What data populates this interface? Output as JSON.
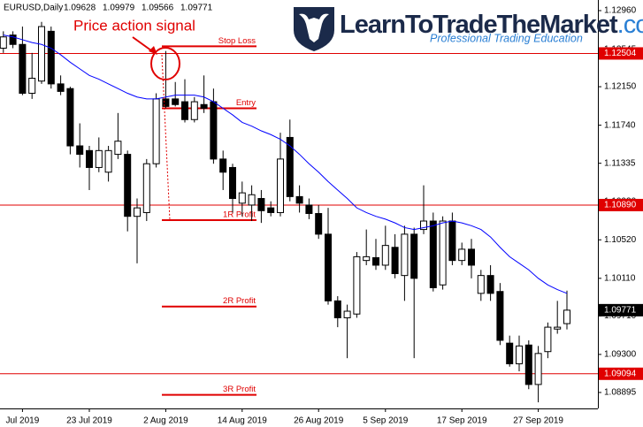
{
  "chart_data": {
    "type": "candlestick",
    "header": {
      "symbol": "EURUSD,Daily",
      "ohlc": [
        1.09628,
        1.09979,
        1.09566,
        1.09771
      ]
    },
    "logo": {
      "name": "LearnToTradeTheMarket",
      "suffix": ".com",
      "tagline": "Professional Trading Education"
    },
    "signal_label": "Price action signal",
    "categories": [
      null,
      null,
      "Jul 2019",
      null,
      null,
      null,
      null,
      null,
      null,
      "23 Jul 2019",
      null,
      null,
      null,
      null,
      null,
      null,
      null,
      "2 Aug 2019",
      null,
      null,
      null,
      null,
      null,
      null,
      null,
      "14 Aug 2019",
      null,
      null,
      null,
      null,
      null,
      null,
      null,
      "26 Aug 2019",
      null,
      null,
      null,
      null,
      null,
      null,
      "5 Sep 2019",
      null,
      null,
      null,
      null,
      null,
      null,
      null,
      "17 Sep 2019",
      null,
      null,
      null,
      null,
      null,
      null,
      null,
      "27 Sep 2019",
      null,
      null,
      null
    ],
    "candles": {
      "open": [
        1.1256,
        1.127,
        1.126,
        1.1208,
        1.1221,
        1.1274,
        1.1218,
        1.1213,
        1.1152,
        1.1147,
        1.1129,
        1.1124,
        1.1143,
        1.1143,
        1.1077,
        1.1081,
        1.1133,
        1.1202,
        1.1202,
        1.1199,
        1.118,
        1.1196,
        1.1199,
        1.1138,
        1.1129,
        1.1091,
        1.1089,
        1.1096,
        1.1086,
        1.1081,
        1.1161,
        1.1098,
        1.1089,
        1.108,
        1.1058,
        1.0987,
        1.0969,
        1.0973,
        1.103,
        1.1033,
        1.1025,
        1.1044,
        1.1014,
        1.1058,
        1.1063,
        1.1072,
        1.1004,
        1.1072,
        1.103,
        1.1042,
        1.0995,
        1.1014,
        1.0997,
        1.0942,
        1.092,
        1.094,
        1.0898,
        1.0933,
        1.0957,
        1.09628
      ],
      "high": [
        1.1274,
        1.1274,
        1.1279,
        1.1251,
        1.1284,
        1.1279,
        1.1227,
        1.1215,
        1.1176,
        1.1152,
        1.1161,
        1.1152,
        1.1187,
        1.1147,
        1.1096,
        1.1138,
        1.1208,
        1.1253,
        1.122,
        1.1223,
        1.1204,
        1.1227,
        1.1213,
        1.1147,
        1.1133,
        1.1114,
        1.111,
        1.1105,
        1.1093,
        1.1166,
        1.118,
        1.111,
        1.1096,
        1.1089,
        1.1086,
        1.0992,
        1.0983,
        1.1039,
        1.1063,
        1.1053,
        1.1067,
        1.1058,
        1.1067,
        1.1065,
        1.111,
        1.1081,
        1.1077,
        1.1081,
        1.1049,
        1.1053,
        1.102,
        1.1025,
        1.1006,
        1.095,
        1.095,
        1.0945,
        1.0939,
        1.0964,
        1.0987,
        1.09979
      ],
      "low": [
        1.1251,
        1.1256,
        1.1206,
        1.1202,
        1.1218,
        1.1213,
        1.1206,
        1.1143,
        1.1129,
        1.1105,
        1.1124,
        1.1114,
        1.1138,
        1.1061,
        1.1027,
        1.1072,
        1.1129,
        1.1192,
        1.1194,
        1.1177,
        1.1177,
        1.1187,
        1.1133,
        1.1105,
        1.1081,
        1.1077,
        1.1072,
        1.107,
        1.1077,
        1.1077,
        1.1093,
        1.1081,
        1.1074,
        1.1053,
        1.0983,
        1.0959,
        1.0926,
        1.0969,
        1.1025,
        1.102,
        1.102,
        1.1011,
        1.0987,
        1.0926,
        1.1058,
        1.0997,
        1.0999,
        1.1025,
        1.1025,
        1.1011,
        1.0987,
        1.0987,
        1.094,
        1.0917,
        1.0912,
        1.0893,
        1.0879,
        1.0926,
        1.0952,
        1.09566
      ],
      "close": [
        1.1268,
        1.126,
        1.1208,
        1.1224,
        1.1279,
        1.1218,
        1.121,
        1.1152,
        1.1143,
        1.1129,
        1.1147,
        1.1147,
        1.1157,
        1.1077,
        1.1086,
        1.1133,
        1.1202,
        1.1194,
        1.1196,
        1.118,
        1.1199,
        1.1192,
        1.1138,
        1.1124,
        1.1096,
        1.1102,
        1.11,
        1.1083,
        1.1081,
        1.1138,
        1.1098,
        1.1091,
        1.108,
        1.1058,
        1.0987,
        1.0969,
        1.0976,
        1.1034,
        1.1034,
        1.1025,
        1.1046,
        1.1016,
        1.1058,
        1.1011,
        1.1072,
        1.1001,
        1.1072,
        1.103,
        1.1042,
        1.1025,
        1.1014,
        1.0995,
        1.0945,
        1.092,
        1.0939,
        1.0898,
        1.0931,
        1.0959,
        1.0959,
        1.09771
      ]
    },
    "ma": {
      "color": "#0000ff",
      "values": [
        1.127,
        1.1268,
        1.1265,
        1.1262,
        1.126,
        1.1256,
        1.1249,
        1.1241,
        1.1234,
        1.1227,
        1.1223,
        1.1218,
        1.1213,
        1.1208,
        1.1204,
        1.1202,
        1.1202,
        1.1204,
        1.1206,
        1.1206,
        1.1206,
        1.1204,
        1.1199,
        1.1192,
        1.1185,
        1.1177,
        1.1173,
        1.1168,
        1.1164,
        1.1159,
        1.1152,
        1.1143,
        1.1133,
        1.1124,
        1.1114,
        1.1105,
        1.1096,
        1.1086,
        1.1081,
        1.1077,
        1.1074,
        1.107,
        1.1065,
        1.1063,
        1.1065,
        1.1067,
        1.107,
        1.1072,
        1.107,
        1.1067,
        1.1063,
        1.1055,
        1.1044,
        1.1034,
        1.1027,
        1.102,
        1.1011,
        1.1004,
        1.0999,
        1.0995
      ]
    },
    "level_color": "#e00000",
    "price_levels": [
      1.12504,
      {
        "value": 1.1089,
        "label": "1.10890"
      },
      1.09094
    ],
    "current_price": 1.09771,
    "annotations": [
      {
        "label": "Stop Loss",
        "value": 1.1258
      },
      {
        "label": "Entry",
        "value": 1.1192
      },
      {
        "label": "1R Profit",
        "value": 1.1073
      },
      {
        "label": "2R Profit",
        "value": 1.0981
      },
      {
        "label": "3R Profit",
        "value": 1.0887
      }
    ],
    "ylim": [
      1.08725,
      1.13073
    ],
    "yticks": [
      {
        "value": 1.1296,
        "label": "1.12960"
      },
      1.12545,
      {
        "value": 1.1215,
        "label": "1.12150"
      },
      {
        "value": 1.1174,
        "label": "1.11740"
      },
      1.11335,
      {
        "value": 1.1093,
        "label": "1.10930"
      },
      {
        "value": 1.1052,
        "label": "1.10520"
      },
      {
        "value": 1.1011,
        "label": "1.10110"
      },
      {
        "value": 1.0971,
        "label": "1.09710"
      },
      {
        "value": 1.093,
        "label": "1.09300"
      },
      1.08895
    ]
  }
}
